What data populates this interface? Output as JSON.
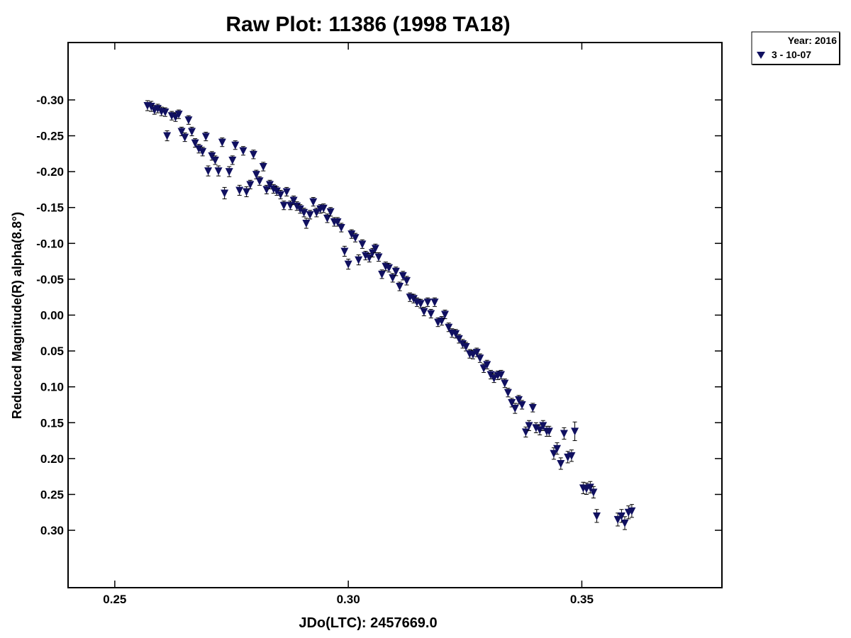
{
  "chart_data": {
    "type": "scatter",
    "title": "Raw Plot: 11386 (1998 TA18)",
    "xlabel": "JDo(LTC): 2457669.0",
    "ylabel": "Reduced Magnitude(R) alpha(8.8°)",
    "xlim": [
      0.24,
      0.38
    ],
    "ylim": [
      -0.38,
      0.38
    ],
    "y_inverted": true,
    "x_ticks": [
      0.25,
      0.3,
      0.35
    ],
    "x_tick_labels": [
      "0.25",
      "0.30",
      "0.35"
    ],
    "y_ticks": [
      -0.3,
      -0.25,
      -0.2,
      -0.15,
      -0.1,
      -0.05,
      0.0,
      0.05,
      0.1,
      0.15,
      0.2,
      0.25,
      0.3
    ],
    "y_tick_labels": [
      "-0.30",
      "-0.25",
      "-0.20",
      "-0.15",
      "-0.10",
      "-0.05",
      "0.00",
      "0.05",
      "0.10",
      "0.15",
      "0.20",
      "0.25",
      "0.30"
    ],
    "grid": false,
    "legend": {
      "placement": "outside-top-right",
      "header": "Year: 2016",
      "entries": [
        {
          "label": "3 - 10-07",
          "marker": "triangle-down",
          "color": "#101060"
        }
      ]
    },
    "series": [
      {
        "name": "3 - 10-07",
        "marker": "triangle-down",
        "color": "#101060",
        "points": [
          [
            0.257,
            -0.292,
            0.007
          ],
          [
            0.2578,
            -0.291,
            0.007
          ],
          [
            0.2585,
            -0.286,
            0.006
          ],
          [
            0.2592,
            -0.288,
            0.006
          ],
          [
            0.26,
            -0.284,
            0.006
          ],
          [
            0.2608,
            -0.283,
            0.006
          ],
          [
            0.2612,
            -0.25,
            0.007
          ],
          [
            0.2622,
            -0.278,
            0.006
          ],
          [
            0.263,
            -0.276,
            0.006
          ],
          [
            0.2637,
            -0.28,
            0.006
          ],
          [
            0.2643,
            -0.256,
            0.006
          ],
          [
            0.265,
            -0.248,
            0.006
          ],
          [
            0.2658,
            -0.272,
            0.006
          ],
          [
            0.2665,
            -0.256,
            0.006
          ],
          [
            0.2672,
            -0.24,
            0.006
          ],
          [
            0.268,
            -0.232,
            0.006
          ],
          [
            0.2688,
            -0.228,
            0.006
          ],
          [
            0.2695,
            -0.249,
            0.006
          ],
          [
            0.27,
            -0.201,
            0.007
          ],
          [
            0.2708,
            -0.222,
            0.006
          ],
          [
            0.2715,
            -0.216,
            0.006
          ],
          [
            0.2722,
            -0.201,
            0.007
          ],
          [
            0.273,
            -0.241,
            0.006
          ],
          [
            0.2735,
            -0.17,
            0.008
          ],
          [
            0.2745,
            -0.2,
            0.007
          ],
          [
            0.2752,
            -0.216,
            0.006
          ],
          [
            0.2758,
            -0.237,
            0.006
          ],
          [
            0.2767,
            -0.174,
            0.007
          ],
          [
            0.2775,
            -0.229,
            0.006
          ],
          [
            0.2782,
            -0.172,
            0.007
          ],
          [
            0.279,
            -0.182,
            0.006
          ],
          [
            0.2797,
            -0.224,
            0.006
          ],
          [
            0.2803,
            -0.196,
            0.006
          ],
          [
            0.281,
            -0.187,
            0.006
          ],
          [
            0.2818,
            -0.207,
            0.006
          ],
          [
            0.2825,
            -0.175,
            0.006
          ],
          [
            0.2832,
            -0.182,
            0.006
          ],
          [
            0.284,
            -0.176,
            0.006
          ],
          [
            0.2847,
            -0.173,
            0.006
          ],
          [
            0.2855,
            -0.168,
            0.006
          ],
          [
            0.2862,
            -0.153,
            0.006
          ],
          [
            0.2868,
            -0.172,
            0.006
          ],
          [
            0.2876,
            -0.153,
            0.006
          ],
          [
            0.2883,
            -0.16,
            0.006
          ],
          [
            0.289,
            -0.152,
            0.006
          ],
          [
            0.2897,
            -0.148,
            0.006
          ],
          [
            0.2905,
            -0.143,
            0.006
          ],
          [
            0.291,
            -0.128,
            0.007
          ],
          [
            0.2918,
            -0.14,
            0.006
          ],
          [
            0.2925,
            -0.158,
            0.006
          ],
          [
            0.2932,
            -0.143,
            0.006
          ],
          [
            0.294,
            -0.148,
            0.006
          ],
          [
            0.2947,
            -0.149,
            0.006
          ],
          [
            0.2955,
            -0.135,
            0.006
          ],
          [
            0.2962,
            -0.144,
            0.006
          ],
          [
            0.297,
            -0.13,
            0.006
          ],
          [
            0.2977,
            -0.13,
            0.006
          ],
          [
            0.2985,
            -0.122,
            0.006
          ],
          [
            0.2992,
            -0.089,
            0.007
          ],
          [
            0.3,
            -0.071,
            0.007
          ],
          [
            0.3007,
            -0.113,
            0.006
          ],
          [
            0.3015,
            -0.108,
            0.006
          ],
          [
            0.3022,
            -0.077,
            0.007
          ],
          [
            0.303,
            -0.099,
            0.006
          ],
          [
            0.3037,
            -0.083,
            0.006
          ],
          [
            0.3045,
            -0.08,
            0.006
          ],
          [
            0.3052,
            -0.087,
            0.006
          ],
          [
            0.3058,
            -0.093,
            0.006
          ],
          [
            0.3065,
            -0.081,
            0.006
          ],
          [
            0.3072,
            -0.057,
            0.006
          ],
          [
            0.308,
            -0.068,
            0.006
          ],
          [
            0.3087,
            -0.066,
            0.006
          ],
          [
            0.3095,
            -0.052,
            0.006
          ],
          [
            0.3102,
            -0.061,
            0.006
          ],
          [
            0.311,
            -0.04,
            0.006
          ],
          [
            0.3117,
            -0.055,
            0.006
          ],
          [
            0.3125,
            -0.048,
            0.006
          ],
          [
            0.3132,
            -0.025,
            0.006
          ],
          [
            0.314,
            -0.023,
            0.006
          ],
          [
            0.3147,
            -0.018,
            0.006
          ],
          [
            0.3155,
            -0.016,
            0.006
          ],
          [
            0.3162,
            -0.005,
            0.006
          ],
          [
            0.317,
            -0.018,
            0.006
          ],
          [
            0.3177,
            -0.002,
            0.006
          ],
          [
            0.3185,
            -0.018,
            0.006
          ],
          [
            0.3192,
            0.01,
            0.006
          ],
          [
            0.32,
            0.008,
            0.006
          ],
          [
            0.3207,
            -0.001,
            0.006
          ],
          [
            0.3215,
            0.017,
            0.006
          ],
          [
            0.3222,
            0.025,
            0.006
          ],
          [
            0.323,
            0.026,
            0.006
          ],
          [
            0.3237,
            0.033,
            0.006
          ],
          [
            0.3245,
            0.04,
            0.006
          ],
          [
            0.3252,
            0.044,
            0.006
          ],
          [
            0.326,
            0.054,
            0.006
          ],
          [
            0.3267,
            0.055,
            0.006
          ],
          [
            0.3275,
            0.052,
            0.006
          ],
          [
            0.3282,
            0.06,
            0.006
          ],
          [
            0.329,
            0.074,
            0.006
          ],
          [
            0.3297,
            0.069,
            0.006
          ],
          [
            0.3305,
            0.083,
            0.006
          ],
          [
            0.3312,
            0.088,
            0.006
          ],
          [
            0.332,
            0.084,
            0.006
          ],
          [
            0.3327,
            0.083,
            0.006
          ],
          [
            0.3335,
            0.095,
            0.006
          ],
          [
            0.3342,
            0.108,
            0.006
          ],
          [
            0.335,
            0.122,
            0.006
          ],
          [
            0.3357,
            0.13,
            0.007
          ],
          [
            0.3365,
            0.118,
            0.006
          ],
          [
            0.3372,
            0.125,
            0.006
          ],
          [
            0.338,
            0.163,
            0.007
          ],
          [
            0.3387,
            0.154,
            0.007
          ],
          [
            0.3395,
            0.129,
            0.006
          ],
          [
            0.3402,
            0.157,
            0.007
          ],
          [
            0.341,
            0.16,
            0.007
          ],
          [
            0.3417,
            0.154,
            0.007
          ],
          [
            0.3425,
            0.162,
            0.007
          ],
          [
            0.343,
            0.162,
            0.007
          ],
          [
            0.344,
            0.193,
            0.008
          ],
          [
            0.3447,
            0.186,
            0.008
          ],
          [
            0.3455,
            0.207,
            0.008
          ],
          [
            0.3462,
            0.165,
            0.008
          ],
          [
            0.347,
            0.198,
            0.008
          ],
          [
            0.3478,
            0.196,
            0.008
          ],
          [
            0.3485,
            0.162,
            0.013
          ],
          [
            0.3503,
            0.241,
            0.008
          ],
          [
            0.351,
            0.242,
            0.008
          ],
          [
            0.3518,
            0.24,
            0.008
          ],
          [
            0.3525,
            0.247,
            0.008
          ],
          [
            0.3532,
            0.28,
            0.009
          ],
          [
            0.3577,
            0.285,
            0.009
          ],
          [
            0.3585,
            0.28,
            0.009
          ],
          [
            0.3592,
            0.29,
            0.009
          ],
          [
            0.36,
            0.275,
            0.009
          ],
          [
            0.3607,
            0.273,
            0.009
          ]
        ]
      }
    ]
  }
}
